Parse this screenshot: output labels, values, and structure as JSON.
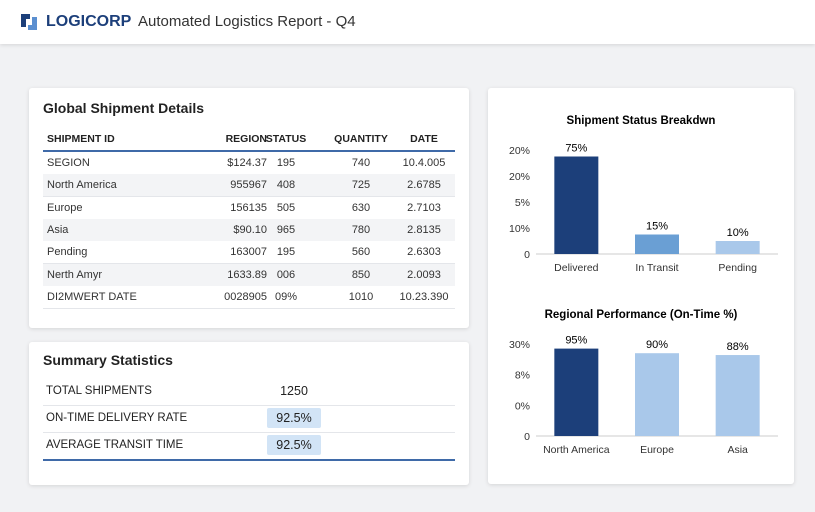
{
  "header": {
    "brand": "LOGICORP",
    "title": "Automated Logistics Report - Q4"
  },
  "table": {
    "title": "Global Shipment Details",
    "columns": [
      "SHIPMENT ID",
      "REGION",
      "STATUS",
      "QUANTITY",
      "DATE"
    ],
    "rows": [
      [
        "SEGION",
        "$124.37",
        "195",
        "740",
        "10.4.005"
      ],
      [
        "North America",
        "955967",
        "408",
        "725",
        "2.6785"
      ],
      [
        "Europe",
        "156135",
        "505",
        "630",
        "2.7103"
      ],
      [
        "Asia",
        "$90.10",
        "965",
        "780",
        "2.8135"
      ],
      [
        "Pending",
        "163007",
        "195",
        "560",
        "2.6303"
      ],
      [
        "Nerth Amyr",
        "1633.89",
        "006",
        "850",
        "2.0093"
      ],
      [
        "DI2MWERT DATE",
        "0028905",
        "09%",
        "1010",
        "10.23.390"
      ]
    ]
  },
  "summary": {
    "title": "Summary Statistics",
    "rows": [
      [
        "TOTAL SHIPMENTS",
        "1250"
      ],
      [
        "ON-TIME DELIVERY RATE",
        "92.5%"
      ],
      [
        "AVERAGE TRANSIT TIME",
        "92.5%"
      ]
    ]
  },
  "charts": [
    {
      "type": "bar",
      "title": "Shipment Status Breakdwn",
      "categories": [
        "Delivered",
        "In Transit",
        "Pending"
      ],
      "values": [
        75,
        15,
        10
      ],
      "value_labels": [
        "75%",
        "15%",
        "10%"
      ],
      "colors": [
        "#1c3f7a",
        "#6a9fd4",
        "#a9c8ea"
      ],
      "y_axis_labels": [
        "20%",
        "20%",
        "5%",
        "10%",
        "0"
      ],
      "ylim": [
        0,
        80
      ]
    },
    {
      "type": "bar",
      "title": "Regional Performance (On-Time %)",
      "categories": [
        "North America",
        "Europe",
        "Asia"
      ],
      "values": [
        95,
        90,
        88
      ],
      "value_labels": [
        "95%",
        "90%",
        "88%"
      ],
      "colors": [
        "#1c3f7a",
        "#a9c8ea",
        "#a9c8ea"
      ],
      "y_axis_labels": [
        "30%",
        "8%",
        "0%",
        "0"
      ],
      "ylim": [
        0,
        100
      ]
    }
  ]
}
